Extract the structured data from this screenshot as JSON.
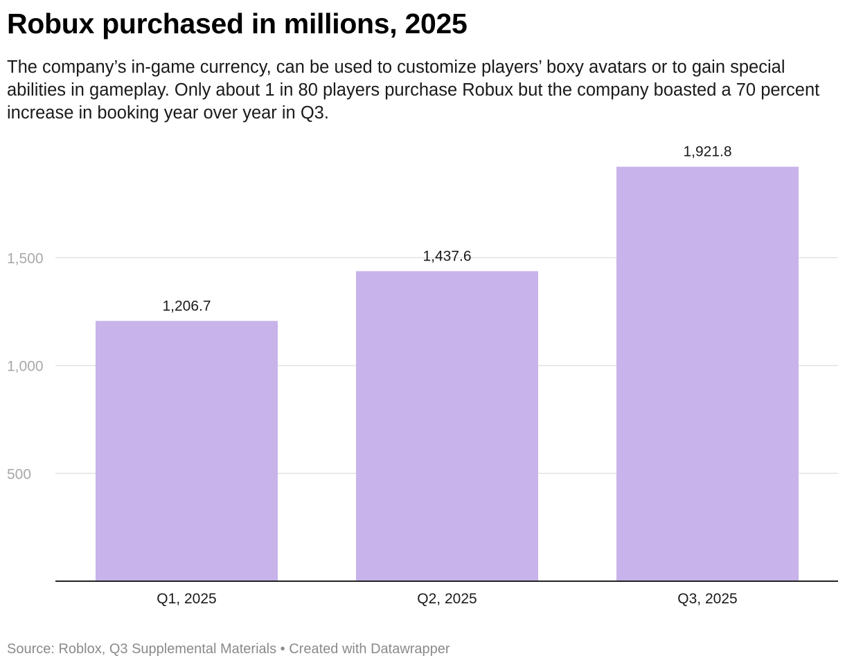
{
  "header": {
    "title": "Robux purchased in millions, 2025",
    "subtitle": "The company’s in-game currency, can be used to customize players’ boxy avatars or to gain special abilities in gameplay. Only about 1 in 80 players purchase Robux but the company boasted a 70 percent increase in booking year over year in Q3."
  },
  "footer": {
    "source_text": "Source: Roblox, Q3 Supplemental Materials",
    "separator": "•",
    "credit": "Created with Datawrapper"
  },
  "colors": {
    "bar": "#c8b3ea",
    "gridline": "#e2e2e2",
    "baseline": "#222222",
    "tick_label": "#a8a8a8",
    "value_label": "#1a1a1a",
    "category_label": "#1a1a1a",
    "footer": "#8a8a8a"
  },
  "chart_data": {
    "type": "bar",
    "title": "Robux purchased in millions, 2025",
    "categories": [
      "Q1, 2025",
      "Q2, 2025",
      "Q3, 2025"
    ],
    "values": [
      1206.7,
      1437.6,
      1921.8
    ],
    "value_labels": [
      "1,206.7",
      "1,437.6",
      "1,921.8"
    ],
    "y_ticks": [
      500,
      1000,
      1500
    ],
    "y_tick_labels": [
      "500",
      "1,000",
      "1,500"
    ],
    "ylim": [
      0,
      2000
    ],
    "grid": true,
    "legend": "none"
  }
}
